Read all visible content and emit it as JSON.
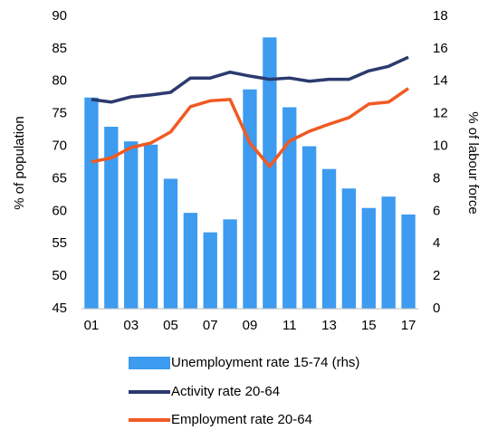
{
  "chart_data": {
    "type": "bar-line",
    "ylabel": "% of population",
    "y2label": "% of labour force",
    "categories": [
      "01",
      null,
      "03",
      null,
      "05",
      null,
      "07",
      null,
      "09",
      null,
      "11",
      null,
      "13",
      null,
      "15",
      null,
      "17"
    ],
    "ylim": [
      45,
      90
    ],
    "yticks": [
      45,
      50,
      55,
      60,
      65,
      70,
      75,
      80,
      85,
      90
    ],
    "y2lim": [
      0,
      18
    ],
    "y2ticks": [
      0,
      2,
      4,
      6,
      8,
      10,
      12,
      14,
      16,
      18
    ],
    "series": [
      {
        "name": "Unemployment rate 15-74 (rhs)",
        "type": "bar",
        "axis": "y2",
        "color": "#3d9bf0",
        "values": [
          13.0,
          11.2,
          10.3,
          10.1,
          8.0,
          5.9,
          4.7,
          5.5,
          13.5,
          16.7,
          12.4,
          10.0,
          8.6,
          7.4,
          6.2,
          6.9,
          5.8
        ]
      },
      {
        "name": "Activity rate 20-64",
        "type": "line",
        "color": "#2b3a6e",
        "values": [
          77.2,
          76.8,
          77.6,
          77.9,
          78.3,
          80.5,
          80.5,
          81.4,
          80.8,
          80.3,
          80.5,
          80.0,
          80.3,
          80.3,
          81.6,
          82.3,
          83.7
        ]
      },
      {
        "name": "Employment rate 20-64",
        "type": "line",
        "color": "#f05a23",
        "values": [
          67.6,
          68.2,
          69.8,
          70.5,
          72.2,
          76.1,
          77.0,
          77.2,
          70.5,
          66.9,
          70.8,
          72.3,
          73.4,
          74.4,
          76.5,
          76.8,
          78.9
        ]
      }
    ]
  }
}
